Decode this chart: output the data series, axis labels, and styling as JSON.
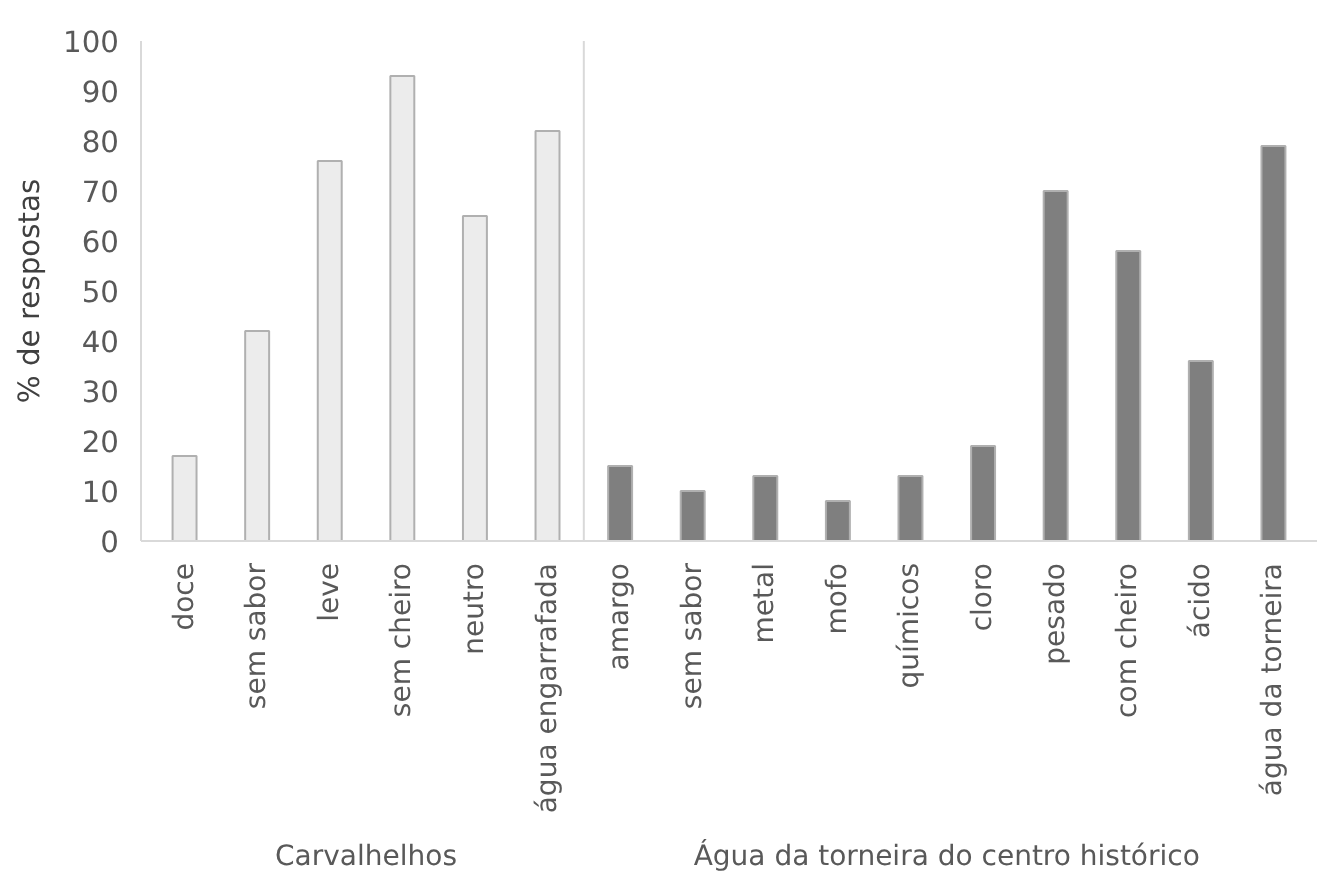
{
  "chart_data": {
    "type": "bar",
    "ylabel": "% de respostas",
    "categories": [
      "doce",
      "sem sabor",
      "leve",
      "sem cheiro",
      "neutro",
      "água engarrafada",
      "amargo",
      "sem sabor",
      "metal",
      "mofo",
      "químicos",
      "cloro",
      "pesado",
      "com cheiro",
      "ácido",
      "água da torneira"
    ],
    "series": [
      {
        "color": "#ececec",
        "values": [
          17,
          42,
          76,
          93,
          65,
          82,
          null,
          null,
          null,
          null,
          null,
          null,
          null,
          null,
          null,
          null
        ]
      },
      {
        "color": "#7f7f7f",
        "values": [
          null,
          null,
          null,
          null,
          null,
          null,
          15,
          10,
          13,
          8,
          13,
          19,
          70,
          58,
          36,
          79
        ]
      }
    ],
    "ylim": [
      0,
      100
    ],
    "yticks": [
      0,
      10,
      20,
      30,
      40,
      50,
      60,
      70,
      80,
      90,
      100
    ],
    "grid": false,
    "annotations": [
      "Carvalhelhos",
      "Água da torneira do centro histórico"
    ]
  }
}
